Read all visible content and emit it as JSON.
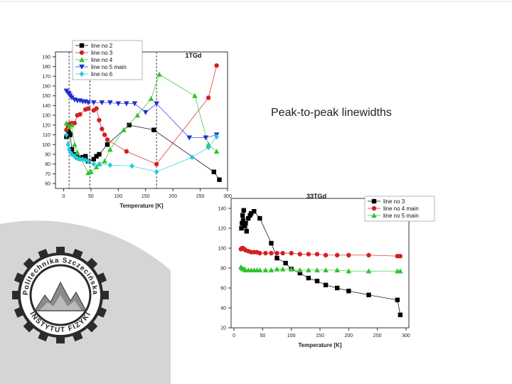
{
  "slide": {
    "headline": "Peak-to-peak linewidths",
    "logo_text": "Politechnika Szczecińska INSTYTUT FIZYKI"
  },
  "chart_data": [
    {
      "type": "line",
      "title": "1TGd",
      "xlabel": "Temperature [K]",
      "ylabel": "",
      "xlim": [
        -15,
        300
      ],
      "ylim": [
        55,
        195
      ],
      "xticks": [
        0,
        50,
        100,
        150,
        200,
        250,
        300
      ],
      "yticks": [
        60,
        70,
        80,
        90,
        100,
        110,
        120,
        130,
        140,
        150,
        160,
        170,
        180,
        190
      ],
      "legend_position": "top-left",
      "vlines": [
        10,
        48,
        170
      ],
      "series": [
        {
          "name": "line no 2",
          "marker": "square",
          "color": "#000000",
          "x": [
            5,
            8,
            10,
            12,
            15,
            20,
            25,
            30,
            35,
            40,
            45,
            55,
            60,
            65,
            80,
            120,
            165,
            275,
            285
          ],
          "y": [
            108,
            115,
            112,
            110,
            95,
            90,
            87,
            86,
            87,
            88,
            83,
            85,
            88,
            90,
            100,
            120,
            115,
            72,
            64
          ]
        },
        {
          "name": "line no 3",
          "marker": "circle",
          "color": "#d42020",
          "x": [
            5,
            8,
            10,
            15,
            20,
            25,
            30,
            40,
            45,
            55,
            60,
            65,
            70,
            75,
            80,
            115,
            170,
            265,
            280
          ],
          "y": [
            115,
            118,
            121,
            122,
            122,
            130,
            131,
            136,
            137,
            135,
            137,
            125,
            116,
            110,
            105,
            93,
            80,
            148,
            181
          ]
        },
        {
          "name": "line no 4",
          "marker": "triangle-up",
          "color": "#2ec42e",
          "x": [
            5,
            10,
            15,
            20,
            25,
            45,
            50,
            60,
            65,
            75,
            85,
            110,
            135,
            160,
            175,
            240,
            265,
            280
          ],
          "y": [
            122,
            118,
            120,
            100,
            92,
            71,
            72,
            77,
            80,
            83,
            95,
            115,
            130,
            147,
            172,
            150,
            100,
            93
          ]
        },
        {
          "name": "line no 5 main",
          "marker": "triangle-down",
          "color": "#1f2fd4",
          "x": [
            5,
            8,
            10,
            12,
            15,
            20,
            25,
            30,
            35,
            40,
            45,
            55,
            70,
            85,
            100,
            115,
            130,
            150,
            170,
            230,
            260,
            280
          ],
          "y": [
            155,
            153,
            152,
            150,
            148,
            146,
            145,
            145,
            144,
            144,
            143,
            143,
            143,
            143,
            142,
            142,
            142,
            133,
            142,
            107,
            107,
            110
          ]
        },
        {
          "name": "line no 6",
          "marker": "diamond",
          "color": "#22c8e0",
          "x": [
            5,
            8,
            10,
            12,
            15,
            20,
            25,
            30,
            35,
            40,
            45,
            55,
            65,
            85,
            125,
            170,
            235,
            265,
            280
          ],
          "y": [
            110,
            100,
            95,
            92,
            90,
            88,
            86,
            85,
            85,
            84,
            83,
            80,
            80,
            79,
            78,
            72,
            87,
            97,
            108
          ]
        }
      ]
    },
    {
      "type": "line",
      "title": "33TGd",
      "xlabel": "Temperature [K]",
      "ylabel": "",
      "xlim": [
        -5,
        305
      ],
      "ylim": [
        20,
        150
      ],
      "xticks": [
        0,
        50,
        100,
        150,
        200,
        250,
        300
      ],
      "yticks": [
        20,
        40,
        60,
        80,
        100,
        120,
        140
      ],
      "legend_position": "top-right",
      "series": [
        {
          "name": "line no 3",
          "marker": "square",
          "color": "#000000",
          "x": [
            13,
            14,
            15,
            16,
            17,
            18,
            20,
            22,
            25,
            28,
            30,
            35,
            45,
            65,
            75,
            90,
            100,
            115,
            130,
            145,
            160,
            180,
            200,
            235,
            285,
            290
          ],
          "y": [
            120,
            125,
            133,
            128,
            138,
            122,
            125,
            117,
            130,
            133,
            135,
            137,
            130,
            105,
            90,
            85,
            79,
            75,
            70,
            67,
            63,
            60,
            57,
            53,
            48,
            33
          ]
        },
        {
          "name": "line no 4 main",
          "marker": "circle",
          "color": "#d42020",
          "x": [
            12,
            14,
            16,
            18,
            20,
            25,
            30,
            35,
            40,
            45,
            55,
            65,
            75,
            85,
            100,
            115,
            130,
            145,
            160,
            180,
            200,
            235,
            285,
            290
          ],
          "y": [
            99,
            100,
            100,
            99,
            98,
            97,
            96,
            96,
            96,
            95,
            95,
            95,
            95,
            95,
            95,
            94,
            94,
            94,
            93,
            93,
            93,
            93,
            92,
            92
          ]
        },
        {
          "name": "line no 5 main",
          "marker": "triangle-up",
          "color": "#2ec42e",
          "x": [
            12,
            14,
            16,
            18,
            20,
            25,
            30,
            35,
            40,
            45,
            55,
            65,
            75,
            85,
            100,
            115,
            130,
            145,
            160,
            180,
            200,
            235,
            285,
            290
          ],
          "y": [
            81,
            80,
            79,
            79,
            78,
            78,
            78,
            78,
            78,
            78,
            78,
            78,
            79,
            79,
            79,
            78,
            78,
            78,
            78,
            78,
            77,
            77,
            77,
            77
          ]
        }
      ]
    }
  ]
}
